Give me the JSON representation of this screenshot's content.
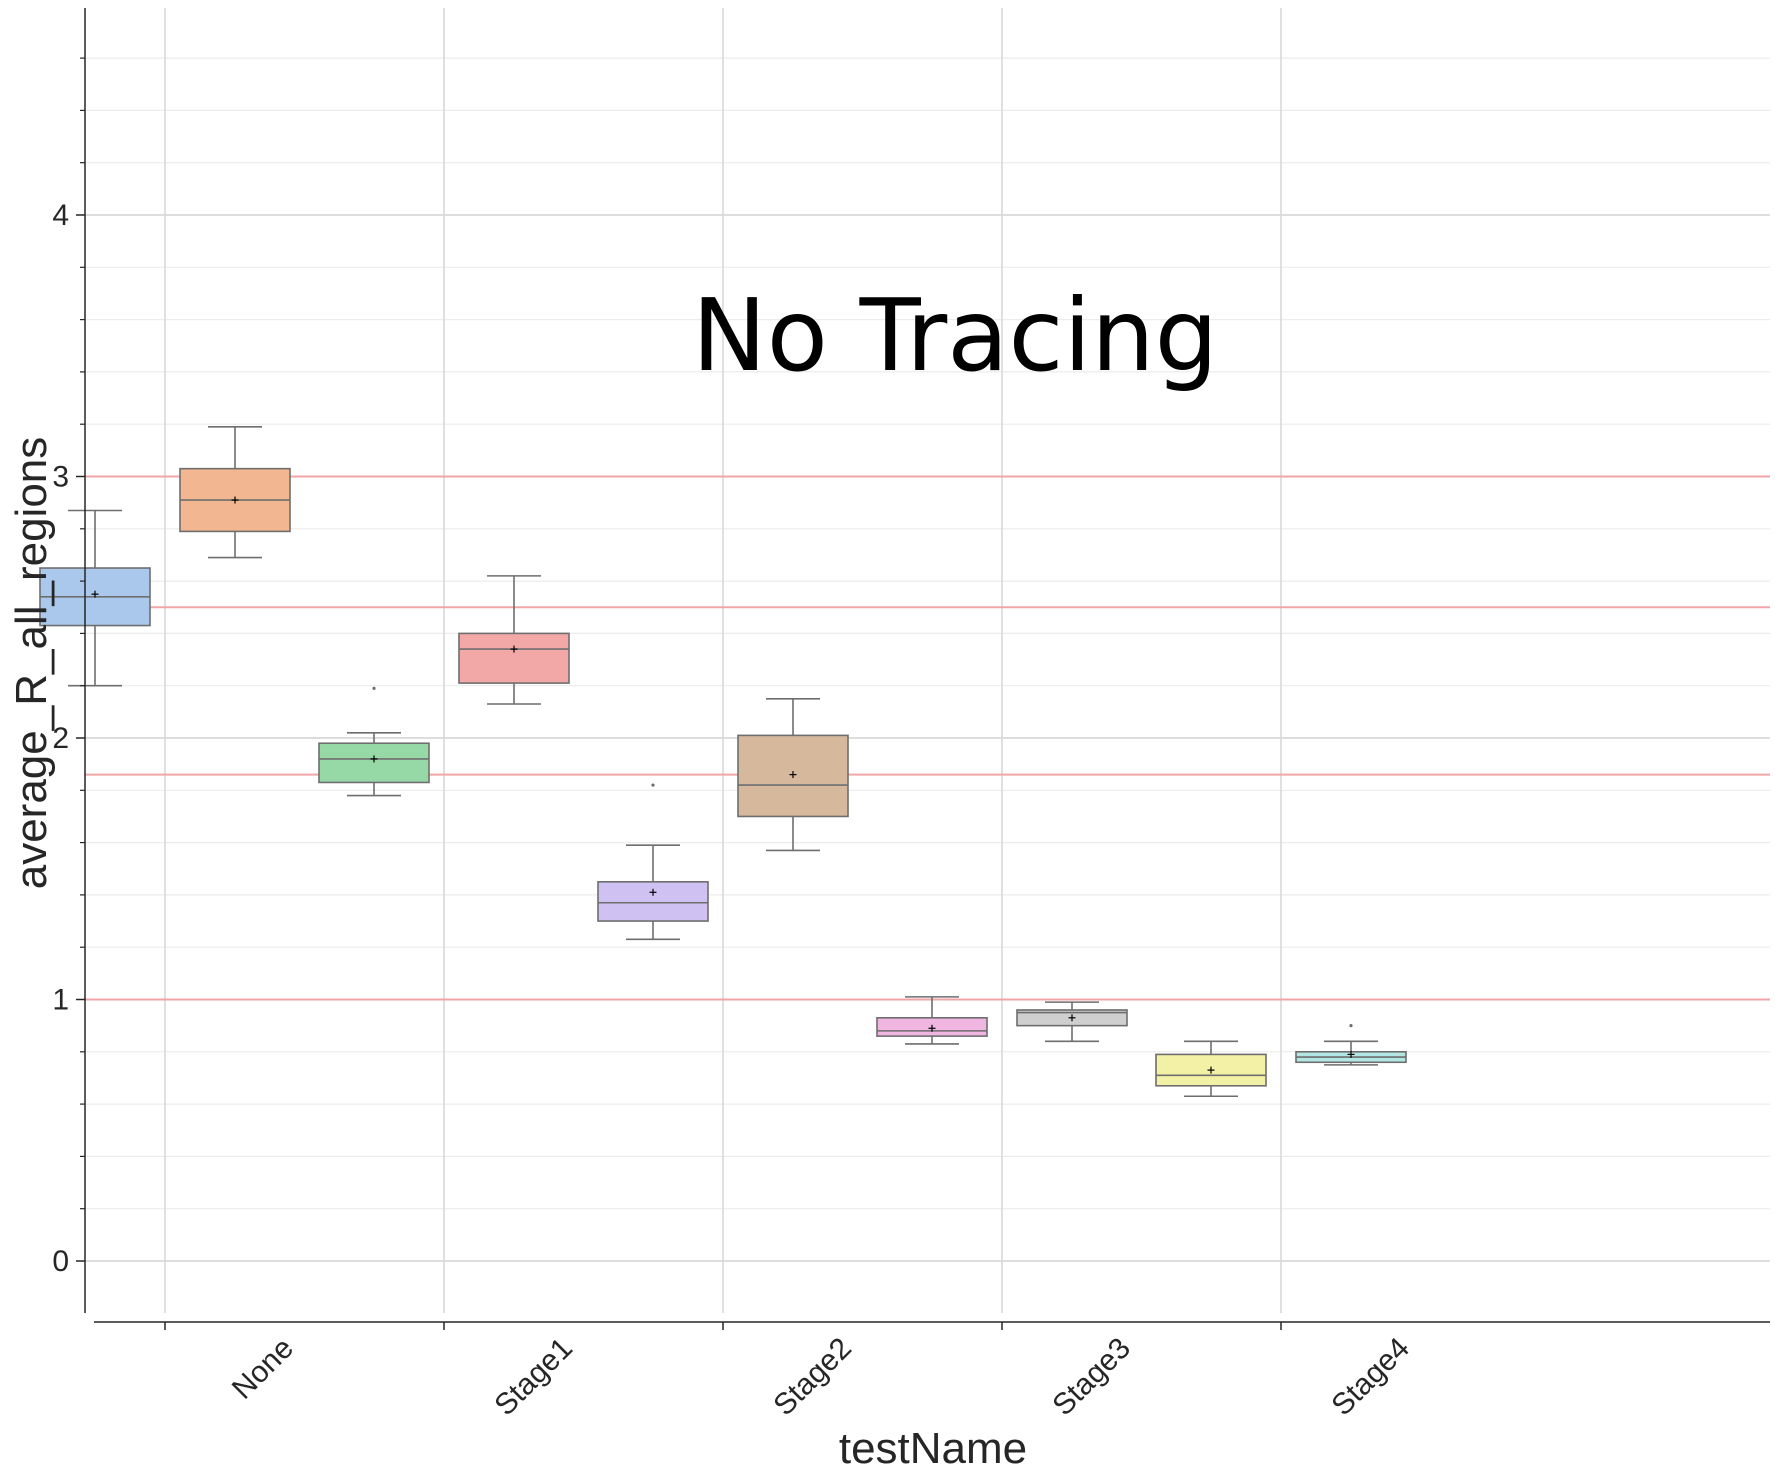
{
  "chart_data": {
    "type": "box",
    "title": "",
    "annotation": "No Tracing",
    "xlabel": "testName",
    "ylabel": "average_R_all_regions",
    "categories": [
      "None",
      "Stage1",
      "Stage2",
      "Stage3",
      "Stage4"
    ],
    "ylim": [
      -0.2,
      4.7
    ],
    "y_major_ticks": [
      0,
      1,
      2,
      3,
      4
    ],
    "y_minor_step": 0.2,
    "grid": true,
    "reference_lines": [
      1.0,
      1.86,
      2.5,
      3.0
    ],
    "reference_line_color": "#f0a6a6",
    "boxes": [
      {
        "category": "None",
        "slot": 0,
        "color": "#a9c8ec",
        "whisker_low": 2.2,
        "q1": 2.43,
        "median": 2.54,
        "q3": 2.65,
        "whisker_high": 2.87,
        "mean": 2.55,
        "outliers": []
      },
      {
        "category": "None",
        "slot": 1,
        "color": "#f2b690",
        "whisker_low": 2.69,
        "q1": 2.79,
        "median": 2.91,
        "q3": 3.03,
        "whisker_high": 3.19,
        "mean": 2.91,
        "outliers": []
      },
      {
        "category": "Stage1",
        "slot": 0,
        "color": "#97d9a6",
        "whisker_low": 1.78,
        "q1": 1.83,
        "median": 1.92,
        "q3": 1.98,
        "whisker_high": 2.02,
        "mean": 1.92,
        "outliers": [
          2.19
        ]
      },
      {
        "category": "Stage1",
        "slot": 1,
        "color": "#f3a8a8",
        "whisker_low": 2.13,
        "q1": 2.21,
        "median": 2.34,
        "q3": 2.4,
        "whisker_high": 2.62,
        "mean": 2.34,
        "outliers": []
      },
      {
        "category": "Stage2",
        "slot": 0,
        "color": "#cfc2f3",
        "whisker_low": 1.23,
        "q1": 1.3,
        "median": 1.37,
        "q3": 1.45,
        "whisker_high": 1.59,
        "mean": 1.41,
        "outliers": [
          1.82
        ]
      },
      {
        "category": "Stage2",
        "slot": 1,
        "color": "#d6b99d",
        "whisker_low": 1.57,
        "q1": 1.7,
        "median": 1.82,
        "q3": 2.01,
        "whisker_high": 2.15,
        "mean": 1.86,
        "outliers": []
      },
      {
        "category": "Stage3",
        "slot": 0,
        "color": "#f0b5e0",
        "whisker_low": 0.83,
        "q1": 0.86,
        "median": 0.88,
        "q3": 0.93,
        "whisker_high": 1.01,
        "mean": 0.89,
        "outliers": []
      },
      {
        "category": "Stage3",
        "slot": 1,
        "color": "#cfcfcf",
        "whisker_low": 0.84,
        "q1": 0.9,
        "median": 0.95,
        "q3": 0.96,
        "whisker_high": 0.99,
        "mean": 0.93,
        "outliers": []
      },
      {
        "category": "Stage4",
        "slot": 0,
        "color": "#f3f1a6",
        "whisker_low": 0.63,
        "q1": 0.67,
        "median": 0.71,
        "q3": 0.79,
        "whisker_high": 0.84,
        "mean": 0.73,
        "outliers": []
      },
      {
        "category": "Stage4",
        "slot": 1,
        "color": "#b2e6e4",
        "whisker_low": 0.75,
        "q1": 0.76,
        "median": 0.78,
        "q3": 0.8,
        "whisker_high": 0.84,
        "mean": 0.79,
        "outliers": [
          0.9
        ]
      }
    ]
  }
}
